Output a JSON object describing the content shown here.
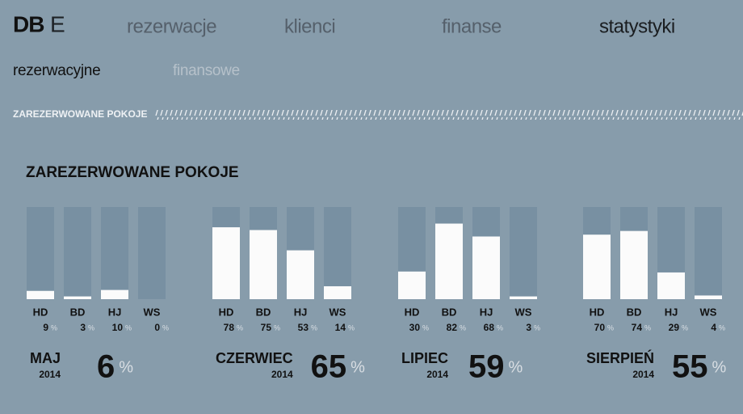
{
  "brand": {
    "bold": "DB",
    "light": "E"
  },
  "nav": [
    {
      "label": "rezerwacje",
      "active": false
    },
    {
      "label": "klienci",
      "active": false
    },
    {
      "label": "finanse",
      "active": false
    },
    {
      "label": "statystyki",
      "active": true
    }
  ],
  "subnav": [
    {
      "label": "rezerwacyjne",
      "active": true
    },
    {
      "label": "finansowe",
      "active": false
    }
  ],
  "section_bar": "ZAREZERWOWANE POKOJE",
  "heading": "ZAREZERWOWANE POKOJE",
  "chart_data": [
    {
      "type": "bar",
      "title": "MAJ",
      "subtitle": "2014",
      "categories": [
        "HD",
        "BD",
        "HJ",
        "WS"
      ],
      "values": [
        9,
        3,
        10,
        0
      ],
      "unit": "%",
      "total": 6,
      "ylim": [
        0,
        100
      ],
      "color": "#fbfbfb",
      "track_color": "#7890a2"
    },
    {
      "type": "bar",
      "title": "CZERWIEC",
      "subtitle": "2014",
      "categories": [
        "HD",
        "BD",
        "HJ",
        "WS"
      ],
      "values": [
        78,
        75,
        53,
        14
      ],
      "unit": "%",
      "total": 65,
      "ylim": [
        0,
        100
      ],
      "color": "#fbfbfb",
      "track_color": "#7890a2"
    },
    {
      "type": "bar",
      "title": "LIPIEC",
      "subtitle": "2014",
      "categories": [
        "HD",
        "BD",
        "HJ",
        "WS"
      ],
      "values": [
        30,
        82,
        68,
        3
      ],
      "unit": "%",
      "total": 59,
      "ylim": [
        0,
        100
      ],
      "color": "#fbfbfb",
      "track_color": "#7890a2"
    },
    {
      "type": "bar",
      "title": "SIERPIEŃ",
      "subtitle": "2014",
      "categories": [
        "HD",
        "BD",
        "HJ",
        "WS"
      ],
      "values": [
        70,
        74,
        29,
        4
      ],
      "unit": "%",
      "total": 55,
      "ylim": [
        0,
        100
      ],
      "color": "#fbfbfb",
      "track_color": "#7890a2"
    }
  ]
}
